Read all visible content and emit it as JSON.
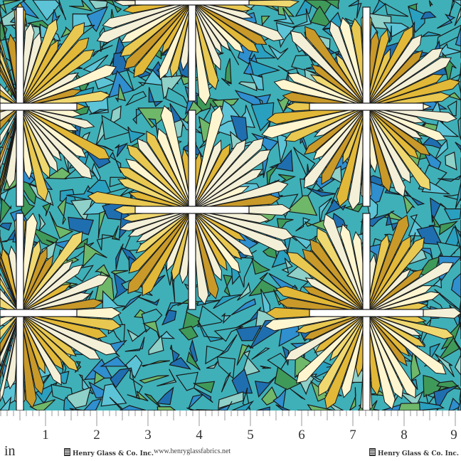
{
  "image": {
    "subject": "stained glass cross fabric print",
    "colors": {
      "blue": "#2f8fcf",
      "teal": "#3fb0b8",
      "green": "#3f9a5a",
      "yellow": "#e2b838",
      "cream": "#f4f0d8",
      "lead": "#1a1a1a",
      "cross": "#ffffff"
    }
  },
  "ruler": {
    "unit": "in",
    "numbers": [
      "1",
      "2",
      "3",
      "4",
      "5",
      "6",
      "7",
      "8",
      "9"
    ],
    "brand_left": "Henry Glass & Co. Inc.",
    "url": "www.henryglassfabrics.net",
    "brand_right": "Henry Glass & Co. Inc."
  }
}
